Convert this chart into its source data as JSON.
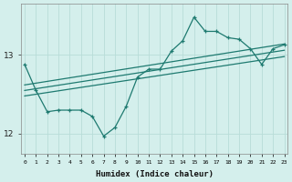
{
  "xlabel": "Humidex (Indice chaleur)",
  "background_color": "#d4efec",
  "grid_color": "#b8ddd8",
  "line_color": "#1e7a70",
  "x_data": [
    0,
    1,
    2,
    3,
    4,
    5,
    6,
    7,
    8,
    9,
    10,
    11,
    12,
    13,
    14,
    15,
    16,
    17,
    18,
    19,
    20,
    21,
    22,
    23
  ],
  "y_data": [
    12.88,
    12.55,
    12.28,
    12.3,
    12.3,
    12.3,
    12.22,
    11.97,
    12.08,
    12.35,
    12.72,
    12.82,
    12.82,
    13.05,
    13.18,
    13.48,
    13.3,
    13.3,
    13.22,
    13.2,
    13.08,
    12.88,
    13.08,
    13.13
  ],
  "ylim": [
    11.75,
    13.65
  ],
  "yticks": [
    12,
    13
  ],
  "xlim": [
    -0.3,
    23.3
  ],
  "xticks": [
    0,
    1,
    2,
    3,
    4,
    5,
    6,
    7,
    8,
    9,
    10,
    11,
    12,
    13,
    14,
    15,
    16,
    17,
    18,
    19,
    20,
    21,
    22,
    23
  ],
  "reg_lines": [
    [
      12.48,
      12.98
    ],
    [
      12.55,
      13.06
    ],
    [
      12.62,
      13.14
    ]
  ]
}
